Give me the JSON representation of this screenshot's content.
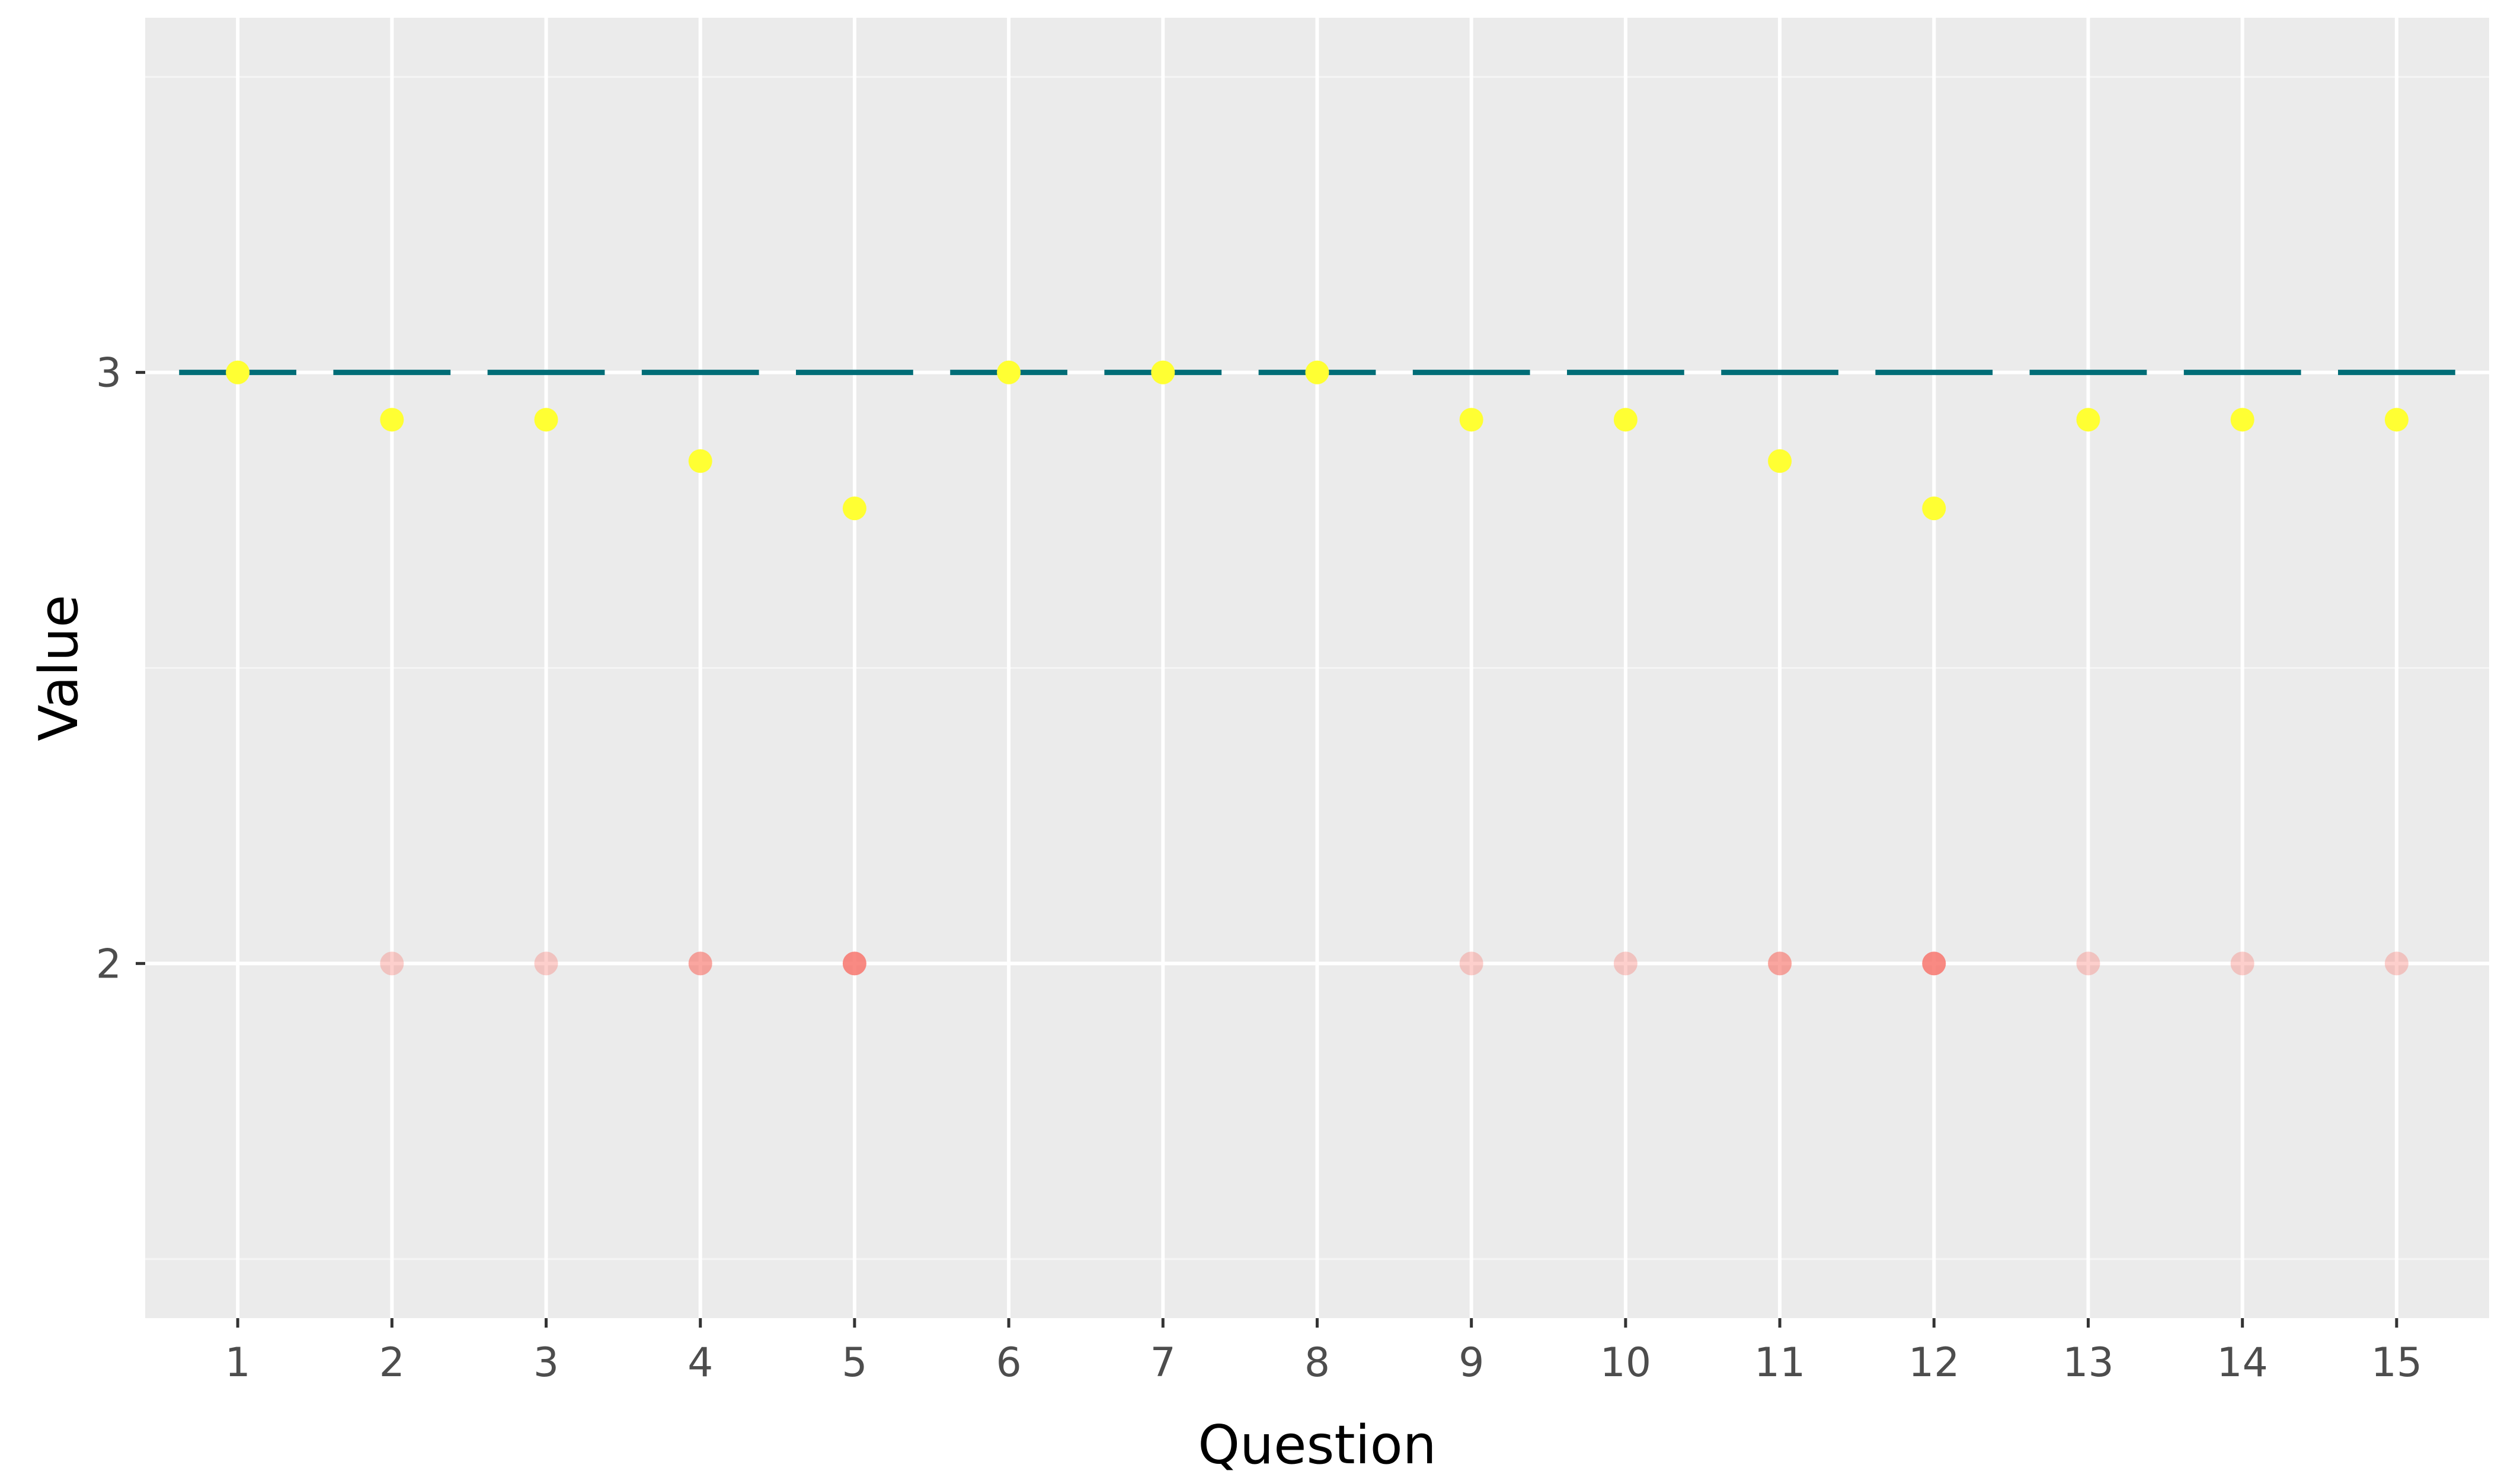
{
  "chart_data": {
    "type": "scatter",
    "title": "",
    "xlabel": "Question",
    "ylabel": "Value",
    "x": [
      1,
      2,
      3,
      4,
      5,
      6,
      7,
      8,
      9,
      10,
      11,
      12,
      13,
      14,
      15
    ],
    "xticks": [
      "1",
      "2",
      "3",
      "4",
      "5",
      "6",
      "7",
      "8",
      "9",
      "10",
      "11",
      "12",
      "13",
      "14",
      "15"
    ],
    "yticks": [
      "2",
      "3"
    ],
    "ytick_values": [
      2,
      3
    ],
    "xlim": [
      0.4,
      15.6
    ],
    "ylim": [
      1.4,
      3.6
    ],
    "grid": true,
    "legend": "none",
    "series": [
      {
        "kind": "segments",
        "color": "#006d77",
        "values": [
          3,
          3,
          3,
          3,
          3,
          3,
          3,
          3,
          3,
          3,
          3,
          3,
          3,
          3,
          3
        ]
      },
      {
        "kind": "points",
        "color": "#ffff33",
        "values": [
          3.0,
          2.92,
          2.92,
          2.85,
          2.77,
          3.0,
          3.0,
          3.0,
          2.92,
          2.92,
          2.85,
          2.77,
          2.92,
          2.92,
          2.92
        ]
      },
      {
        "kind": "points",
        "color": "#f8766d",
        "values": [
          null,
          2,
          2,
          2,
          2,
          null,
          null,
          null,
          2,
          2,
          2,
          2,
          2,
          2,
          2
        ],
        "opacity": [
          0,
          0.35,
          0.35,
          0.65,
          0.85,
          0,
          0,
          0,
          0.35,
          0.35,
          0.65,
          0.85,
          0.35,
          0.35,
          0.35
        ]
      }
    ]
  }
}
